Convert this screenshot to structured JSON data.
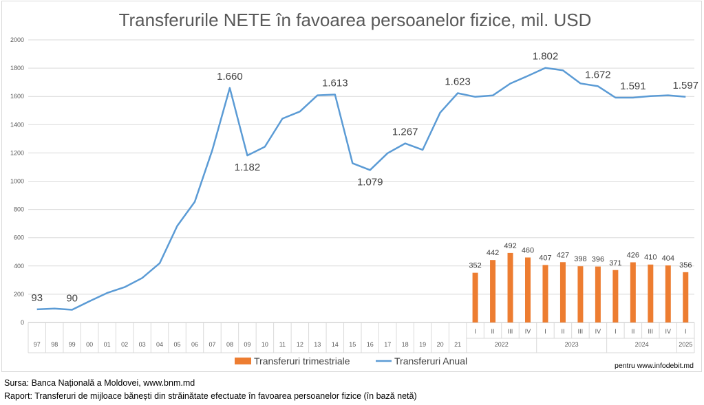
{
  "chart_data": {
    "type": "bar+line",
    "title": "Transferurile NETE în favoarea persoanelor fizice, mil. USD",
    "ylim": [
      0,
      2000
    ],
    "yticks": [
      "0",
      "200",
      "400",
      "600",
      "800",
      "1000",
      "1200",
      "1400",
      "1600",
      "1800",
      "2000"
    ],
    "ytick_values": [
      0,
      200,
      400,
      600,
      800,
      1000,
      1200,
      1400,
      1600,
      1800,
      2000
    ],
    "grid": true,
    "legend_position": "bottom",
    "annual_categories": [
      "97",
      "98",
      "99",
      "00",
      "01",
      "02",
      "03",
      "04",
      "05",
      "06",
      "07",
      "08",
      "09",
      "10",
      "11",
      "12",
      "13",
      "14",
      "15",
      "16",
      "17",
      "18",
      "19",
      "20",
      "21"
    ],
    "quarter_labels": [
      "I",
      "II",
      "III",
      "IV",
      "I",
      "II",
      "III",
      "IV",
      "I",
      "II",
      "III",
      "IV",
      "I"
    ],
    "quarter_years": [
      {
        "label": "2022",
        "count": 4
      },
      {
        "label": "2023",
        "count": 4
      },
      {
        "label": "2024",
        "count": 4
      },
      {
        "label": "2025",
        "count": 1
      }
    ],
    "series": [
      {
        "name": "Transferuri trimestriale",
        "type": "bar",
        "color": "#ed7d31",
        "values": [
          352,
          442,
          492,
          460,
          407,
          427,
          398,
          396,
          371,
          426,
          410,
          404,
          356
        ],
        "labels": [
          "352",
          "442",
          "492",
          "460",
          "407",
          "427",
          "398",
          "396",
          "371",
          "426",
          "410",
          "404",
          "356"
        ]
      },
      {
        "name": "Transferuri Anual",
        "type": "line",
        "color": "#5b9bd5",
        "values": [
          93,
          99,
          90,
          151,
          209,
          250,
          315,
          420,
          683,
          854,
          1220,
          1660,
          1182,
          1244,
          1443,
          1493,
          1608,
          1613,
          1127,
          1079,
          1198,
          1267,
          1222,
          1485,
          1623,
          1597,
          1607,
          1691,
          1745,
          1802,
          1785,
          1692,
          1672,
          1591,
          1591,
          1602,
          1608,
          1597
        ],
        "point_labels": [
          {
            "index": 0,
            "text": "93"
          },
          {
            "index": 2,
            "text": "90"
          },
          {
            "index": 11,
            "text": "1.660"
          },
          {
            "index": 12,
            "text": "1.182"
          },
          {
            "index": 17,
            "text": "1.613"
          },
          {
            "index": 19,
            "text": "1.079"
          },
          {
            "index": 21,
            "text": "1.267"
          },
          {
            "index": 24,
            "text": "1.623"
          },
          {
            "index": 29,
            "text": "1.802"
          },
          {
            "index": 32,
            "text": "1.672"
          },
          {
            "index": 34,
            "text": "1.591"
          },
          {
            "index": 37,
            "text": "1.597"
          }
        ]
      }
    ],
    "watermark": "pentru www.infodebit.md"
  },
  "footer": {
    "source": "Sursa: Banca Națională a Moldovei, www.bnm.md",
    "report": "Raport: Transferuri de mijloace bănești din străinătate efectuate în favoarea persoanelor fizice (în bază netă)"
  }
}
